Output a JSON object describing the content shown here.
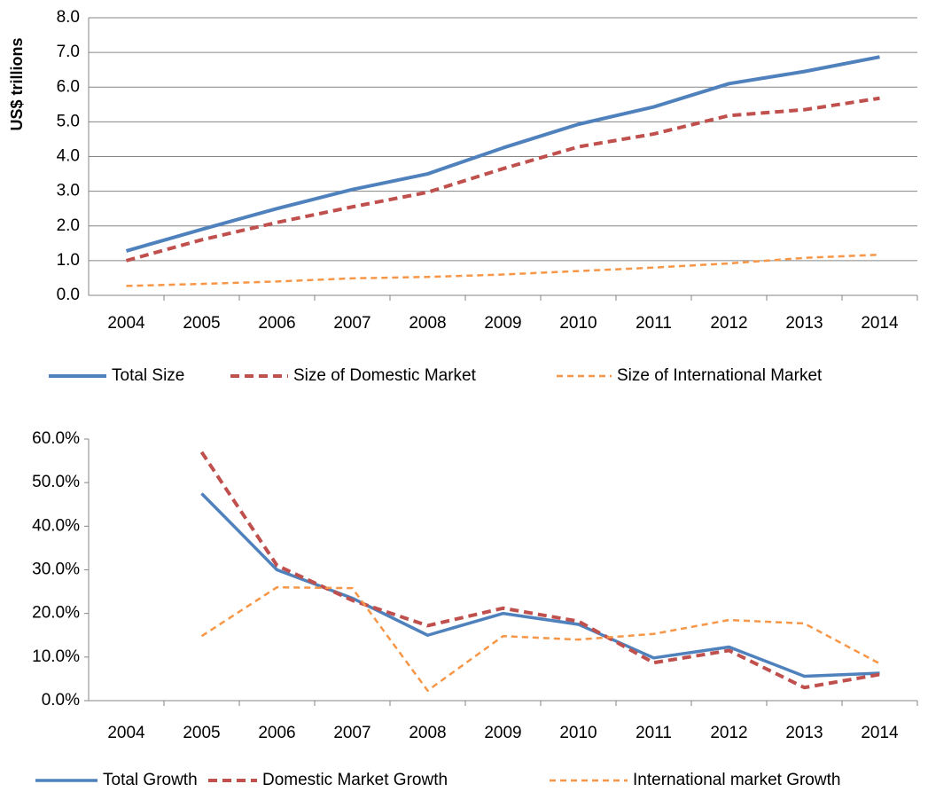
{
  "chart_data": [
    {
      "type": "line",
      "y_label": "US$ trillions",
      "categories": [
        "2004",
        "2005",
        "2006",
        "2007",
        "2008",
        "2009",
        "2010",
        "2011",
        "2012",
        "2013",
        "2014"
      ],
      "ylim": [
        0,
        8
      ],
      "yticks": [
        {
          "value": 0,
          "label": "0.0"
        },
        {
          "value": 1,
          "label": "1.0"
        },
        {
          "value": 2,
          "label": "2.0"
        },
        {
          "value": 3,
          "label": "3.0"
        },
        {
          "value": 4,
          "label": "4.0"
        },
        {
          "value": 5,
          "label": "5.0"
        },
        {
          "value": 6,
          "label": "6.0"
        },
        {
          "value": 7,
          "label": "7.0"
        },
        {
          "value": 8,
          "label": "8.0"
        }
      ],
      "grid": true,
      "legend": "bottom",
      "series": [
        {
          "name": "Total Size",
          "color": "#4f81bd",
          "values": [
            1.28,
            1.9,
            2.5,
            3.05,
            3.5,
            4.25,
            4.93,
            5.43,
            6.1,
            6.45,
            6.87
          ]
        },
        {
          "name": "Size of Domestic Market",
          "color": "#c0504d",
          "values": [
            1.0,
            1.6,
            2.1,
            2.55,
            2.97,
            3.65,
            4.28,
            4.65,
            5.18,
            5.35,
            5.68
          ]
        },
        {
          "name": "Size of International Market",
          "color": "#f79646",
          "values": [
            0.27,
            0.33,
            0.4,
            0.49,
            0.53,
            0.6,
            0.7,
            0.8,
            0.92,
            1.08,
            1.17
          ]
        }
      ]
    },
    {
      "type": "line",
      "categories": [
        "2004",
        "2005",
        "2006",
        "2007",
        "2008",
        "2009",
        "2010",
        "2011",
        "2012",
        "2013",
        "2014"
      ],
      "ylim": [
        0,
        60
      ],
      "yticks": [
        {
          "value": 0,
          "label": "0.0%"
        },
        {
          "value": 10,
          "label": "10.0%"
        },
        {
          "value": 20,
          "label": "20.0%"
        },
        {
          "value": 30,
          "label": "30.0%"
        },
        {
          "value": 40,
          "label": "40.0%"
        },
        {
          "value": 50,
          "label": "50.0%"
        },
        {
          "value": 60,
          "label": "60.0%"
        }
      ],
      "grid": false,
      "legend": "bottom",
      "series": [
        {
          "name": "Total Growth",
          "color": "#4f81bd",
          "values": [
            null,
            47.5,
            30,
            23.5,
            15,
            20,
            17.5,
            9.8,
            12.3,
            5.6,
            6.3
          ]
        },
        {
          "name": "Domestic Market Growth",
          "color": "#c0504d",
          "values": [
            null,
            57,
            31,
            23,
            17.2,
            21.2,
            18.2,
            8.7,
            11.5,
            3,
            6
          ]
        },
        {
          "name": "International market Growth",
          "color": "#f79646",
          "values": [
            null,
            14.8,
            26,
            25.8,
            2.3,
            14.8,
            14,
            15.3,
            18.5,
            17.7,
            8.5
          ]
        }
      ]
    }
  ]
}
